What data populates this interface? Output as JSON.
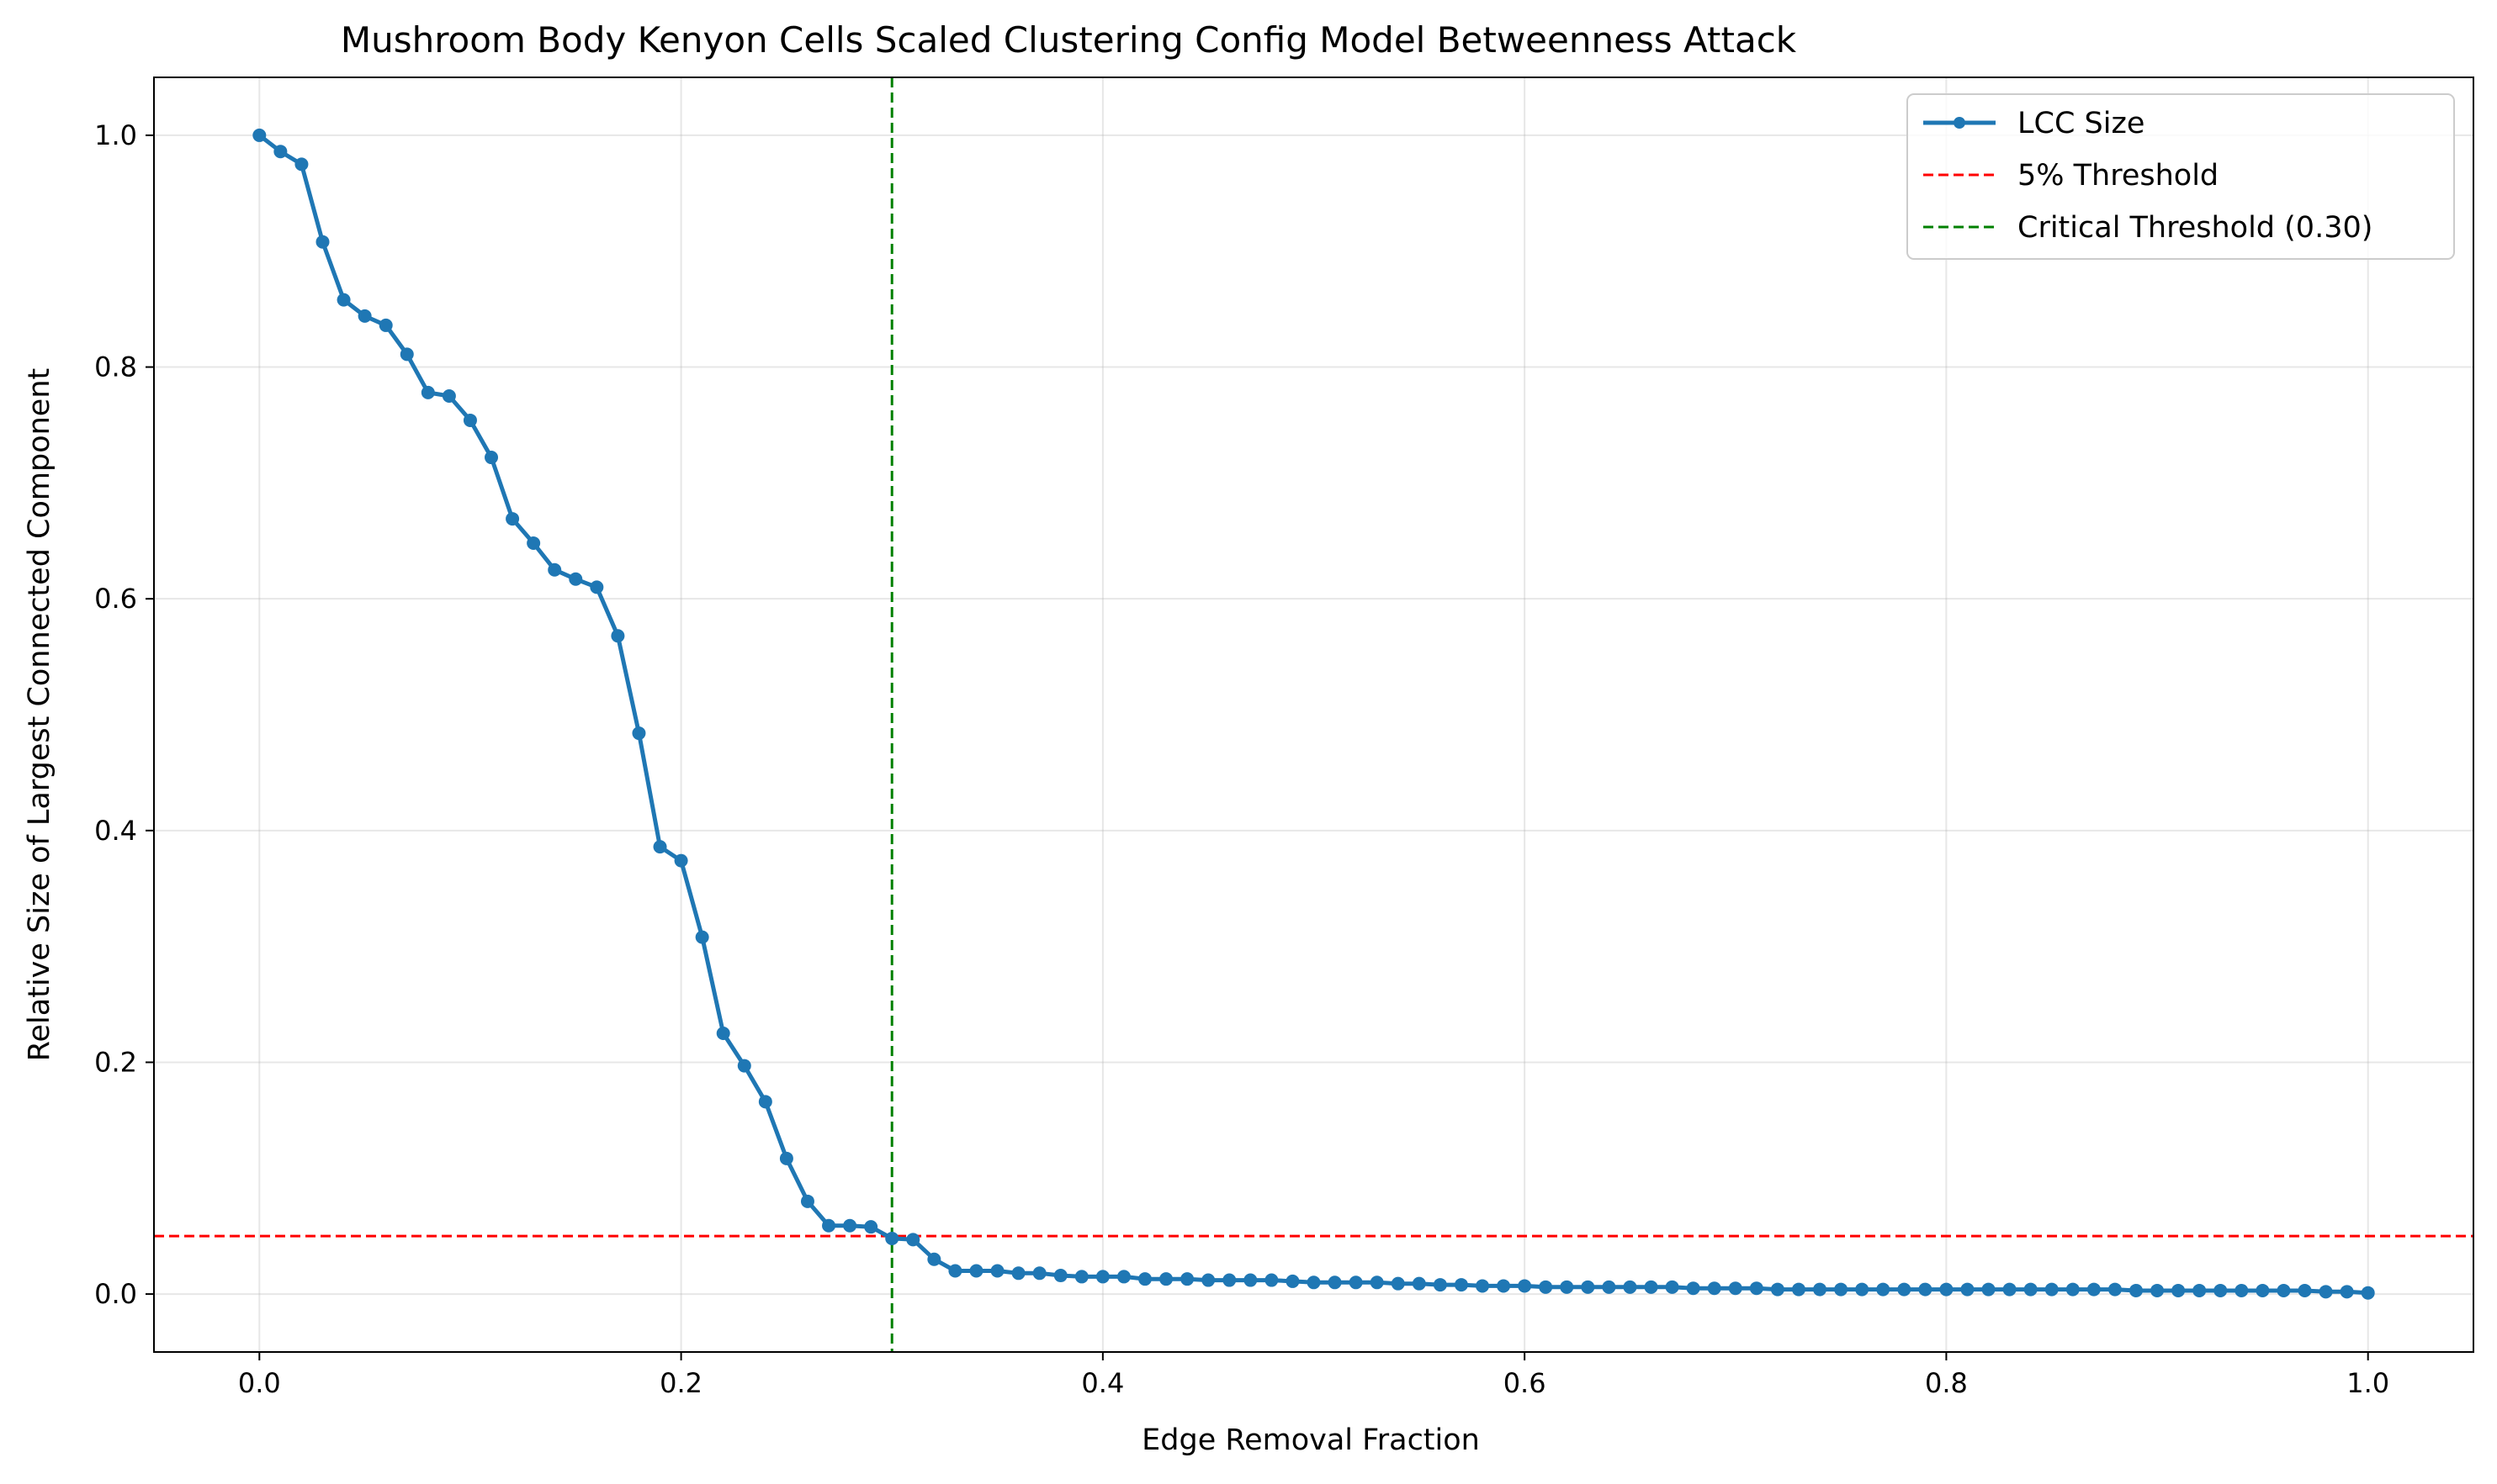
{
  "chart_data": {
    "type": "line",
    "title": "Mushroom Body Kenyon Cells Scaled Clustering Config Model Betweenness Attack",
    "xlabel": "Edge Removal Fraction",
    "ylabel": "Relative Size of Largest Connected Component",
    "xlim": [
      -0.05,
      1.05
    ],
    "ylim": [
      -0.05,
      1.05
    ],
    "xticks": [
      "0.0",
      "0.2",
      "0.4",
      "0.6",
      "0.8",
      "1.0"
    ],
    "yticks": [
      "0.0",
      "0.2",
      "0.4",
      "0.6",
      "0.8",
      "1.0"
    ],
    "grid": true,
    "legend_position": "top-right",
    "series": [
      {
        "name": "LCC Size",
        "color": "#1f77b4",
        "x": [
          0.0,
          0.01,
          0.02,
          0.03,
          0.04,
          0.05,
          0.06,
          0.07,
          0.08,
          0.09,
          0.1,
          0.11,
          0.12,
          0.13,
          0.14,
          0.15,
          0.16,
          0.17,
          0.18,
          0.19,
          0.2,
          0.21,
          0.22,
          0.23,
          0.24,
          0.25,
          0.26,
          0.27,
          0.28,
          0.29,
          0.3,
          0.31,
          0.32,
          0.33,
          0.34,
          0.35,
          0.36,
          0.37,
          0.38,
          0.39,
          0.4,
          0.41,
          0.42,
          0.43,
          0.44,
          0.45,
          0.46,
          0.47,
          0.48,
          0.49,
          0.5,
          0.51,
          0.52,
          0.53,
          0.54,
          0.55,
          0.56,
          0.57,
          0.58,
          0.59,
          0.6,
          0.61,
          0.62,
          0.63,
          0.64,
          0.65,
          0.66,
          0.67,
          0.68,
          0.69,
          0.7,
          0.71,
          0.72,
          0.73,
          0.74,
          0.75,
          0.76,
          0.77,
          0.78,
          0.79,
          0.8,
          0.81,
          0.82,
          0.83,
          0.84,
          0.85,
          0.86,
          0.87,
          0.88,
          0.89,
          0.9,
          0.91,
          0.92,
          0.93,
          0.94,
          0.95,
          0.96,
          0.97,
          0.98,
          0.99,
          1.0
        ],
        "y": [
          1.0,
          0.986,
          0.975,
          0.908,
          0.858,
          0.844,
          0.836,
          0.811,
          0.778,
          0.775,
          0.754,
          0.722,
          0.669,
          0.648,
          0.625,
          0.617,
          0.61,
          0.568,
          0.484,
          0.386,
          0.374,
          0.308,
          0.225,
          0.197,
          0.166,
          0.117,
          0.08,
          0.059,
          0.059,
          0.058,
          0.048,
          0.047,
          0.03,
          0.02,
          0.02,
          0.02,
          0.018,
          0.018,
          0.016,
          0.015,
          0.015,
          0.015,
          0.013,
          0.013,
          0.013,
          0.012,
          0.012,
          0.012,
          0.012,
          0.011,
          0.01,
          0.01,
          0.01,
          0.01,
          0.009,
          0.009,
          0.008,
          0.008,
          0.007,
          0.007,
          0.007,
          0.006,
          0.006,
          0.006,
          0.006,
          0.006,
          0.006,
          0.006,
          0.005,
          0.005,
          0.005,
          0.005,
          0.004,
          0.004,
          0.004,
          0.004,
          0.004,
          0.004,
          0.004,
          0.004,
          0.004,
          0.004,
          0.004,
          0.004,
          0.004,
          0.004,
          0.004,
          0.004,
          0.004,
          0.003,
          0.003,
          0.003,
          0.003,
          0.003,
          0.003,
          0.003,
          0.003,
          0.003,
          0.002,
          0.002,
          0.001
        ]
      },
      {
        "name": "5% Threshold",
        "color": "#ff0000",
        "style": "dashed",
        "orientation": "horizontal",
        "value": 0.05
      },
      {
        "name": "Critical Threshold (0.30)",
        "color": "#008000",
        "style": "dashed",
        "orientation": "vertical",
        "value": 0.3
      }
    ]
  }
}
